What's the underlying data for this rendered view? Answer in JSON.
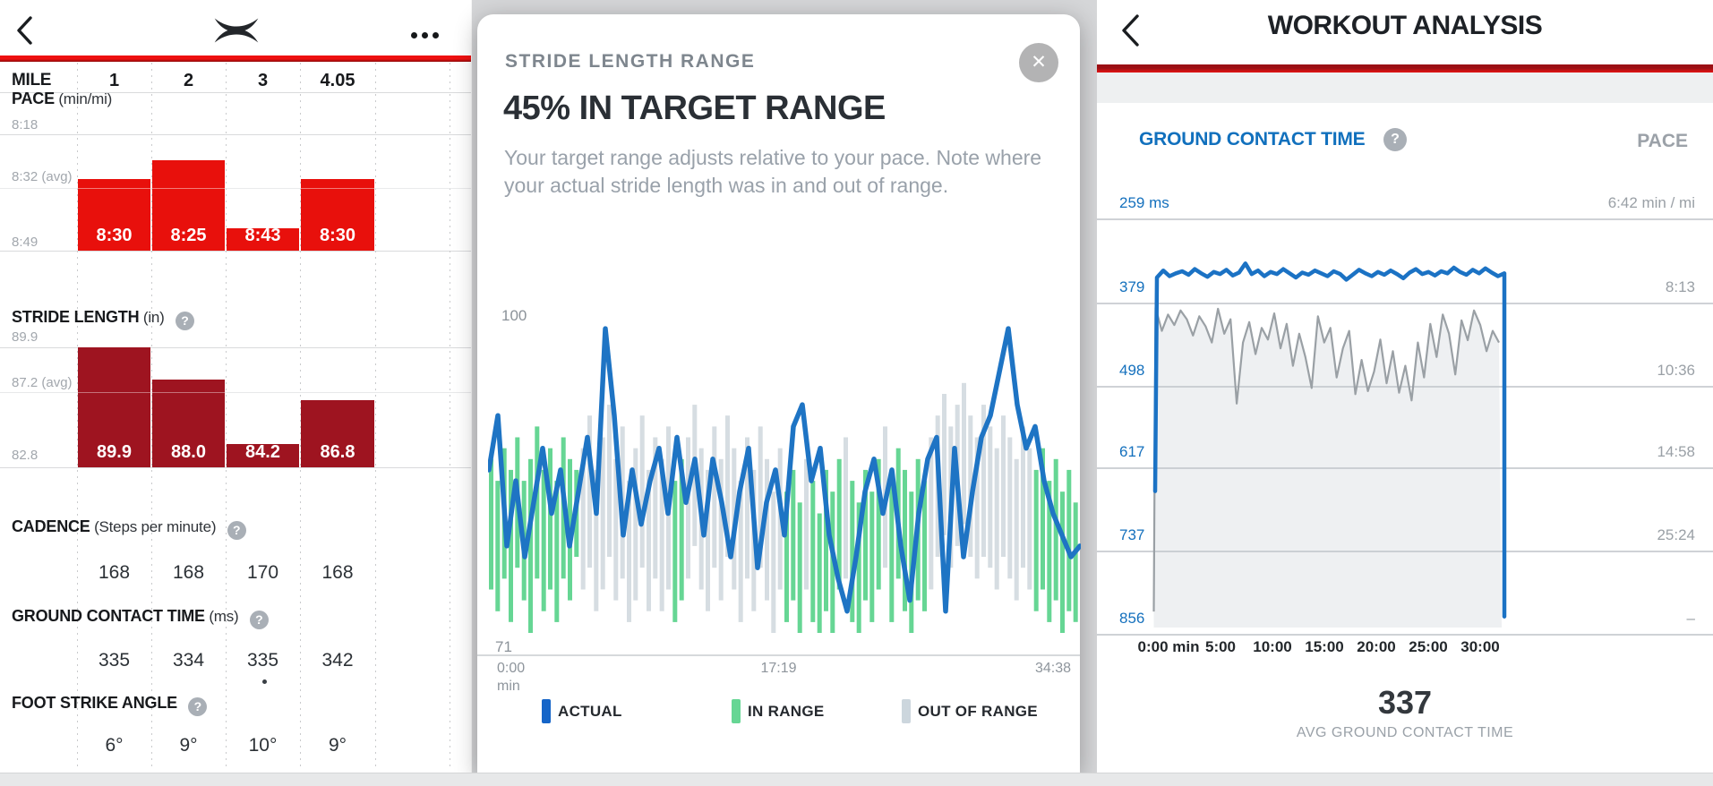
{
  "colors": {
    "accent_red": "#e8100c",
    "dark_red": "#9e1420",
    "blue": "#1b72c4",
    "green": "#66d694",
    "out_gray": "#d6dde2",
    "text_dark": "#24282d",
    "text_gray": "#9aa0a6"
  },
  "left": {
    "mile_label": "MILE",
    "miles": [
      "1",
      "2",
      "3",
      "4.05"
    ],
    "pace": {
      "title": "PACE",
      "unit": "(min/mi)",
      "axis_top": "8:18",
      "axis_avg": "8:32 (avg)",
      "axis_bottom": "8:49",
      "labels": [
        "8:30",
        "8:25",
        "8:43",
        "8:30"
      ]
    },
    "stride": {
      "title": "STRIDE LENGTH",
      "unit": "(in)",
      "axis_top": "89.9",
      "axis_avg": "87.2 (avg)",
      "axis_bottom": "82.8",
      "labels": [
        "89.9",
        "88.0",
        "84.2",
        "86.8"
      ]
    },
    "cadence": {
      "title": "CADENCE",
      "unit": "(Steps per minute)",
      "values": [
        "168",
        "168",
        "170",
        "168"
      ]
    },
    "gct": {
      "title": "GROUND CONTACT TIME",
      "unit": "(ms)",
      "values": [
        "335",
        "334",
        "335",
        "342"
      ]
    },
    "foot": {
      "title": "FOOT STRIKE ANGLE",
      "unit": "",
      "values": [
        "6°",
        "9°",
        "10°",
        "9°"
      ]
    }
  },
  "modal": {
    "title": "STRIDE LENGTH RANGE",
    "heading": "45% IN TARGET RANGE",
    "body": "Your target range adjusts relative to your pace. Note where your actual stride length was in and out of range.",
    "close_glyph": "✕",
    "y_top": "100",
    "y_bottom": "71",
    "x_left_line1": "0:00",
    "x_left_line2": "min",
    "x_mid": "17:19",
    "x_right": "34:38",
    "legend": {
      "actual": "ACTUAL",
      "in_range": "IN RANGE",
      "out_of_range": "OUT OF RANGE"
    }
  },
  "right": {
    "title": "WORKOUT ANALYSIS",
    "gct_label": "GROUND CONTACT TIME",
    "pace_label": "PACE",
    "y_left": [
      "259 ms",
      "379",
      "498",
      "617",
      "737",
      "856"
    ],
    "y_right": [
      "6:42 min / mi",
      "8:13",
      "10:36",
      "14:58",
      "25:24",
      "–"
    ],
    "x_ticks": [
      "0:00 min",
      "5:00",
      "10:00",
      "15:00",
      "20:00",
      "25:00",
      "30:00"
    ],
    "avg_value": "337",
    "avg_label": "AVG GROUND CONTACT TIME"
  },
  "chart_data": [
    {
      "type": "bar",
      "title": "PACE (min/mi)",
      "categories": [
        "1",
        "2",
        "3",
        "4.05"
      ],
      "values": [
        "8:30",
        "8:25",
        "8:43",
        "8:30"
      ],
      "values_seconds": [
        510,
        505,
        523,
        510
      ],
      "yaxis": {
        "top_label": "8:18",
        "avg_label": "8:32 (avg)",
        "bottom_label": "8:49",
        "top_seconds": 498,
        "avg_seconds": 512,
        "bottom_seconds": 529
      }
    },
    {
      "type": "bar",
      "title": "STRIDE LENGTH (in)",
      "categories": [
        "1",
        "2",
        "3",
        "4.05"
      ],
      "values": [
        89.9,
        88.0,
        84.2,
        86.8
      ],
      "yaxis": {
        "top": 89.9,
        "avg": 87.2,
        "bottom": 82.8
      }
    },
    {
      "type": "table",
      "title": "CADENCE (Steps per minute)",
      "categories": [
        "1",
        "2",
        "3",
        "4.05"
      ],
      "values": [
        168,
        168,
        170,
        168
      ]
    },
    {
      "type": "table",
      "title": "GROUND CONTACT TIME (ms)",
      "categories": [
        "1",
        "2",
        "3",
        "4.05"
      ],
      "values": [
        335,
        334,
        335,
        342
      ]
    },
    {
      "type": "table",
      "title": "FOOT STRIKE ANGLE (degrees)",
      "categories": [
        "1",
        "2",
        "3",
        "4.05"
      ],
      "values": [
        6,
        9,
        10,
        9
      ]
    },
    {
      "type": "line+bar",
      "title": "STRIDE LENGTH RANGE",
      "pct_in_target": 45,
      "ylim": [
        71,
        100
      ],
      "x_ticks": [
        "0:00 min",
        "17:19",
        "34:38"
      ],
      "legend": [
        "ACTUAL",
        "IN RANGE",
        "OUT OF RANGE"
      ],
      "actual_line": [
        86,
        91,
        79,
        85,
        78,
        83,
        88,
        82,
        86,
        79,
        84,
        89,
        82,
        99,
        91,
        80,
        86,
        81,
        85,
        88,
        82,
        89,
        83,
        87,
        80,
        87,
        83,
        78,
        84,
        88,
        77,
        83,
        86,
        80,
        90,
        92,
        85,
        88,
        80,
        76,
        73,
        78,
        84,
        87,
        82,
        86,
        79,
        74,
        82,
        87,
        89,
        73,
        88,
        78,
        84,
        89,
        91,
        95,
        99,
        92,
        88,
        90,
        85,
        82,
        80,
        78,
        79
      ],
      "range_bars": [
        [
          87,
          75,
          1
        ],
        [
          85,
          73,
          1
        ],
        [
          88,
          76,
          1
        ],
        [
          86,
          72,
          1
        ],
        [
          89,
          77,
          1
        ],
        [
          85,
          74,
          1
        ],
        [
          87,
          71,
          1
        ],
        [
          90,
          76,
          1
        ],
        [
          86,
          73,
          1
        ],
        [
          88,
          75,
          1
        ],
        [
          85,
          72,
          1
        ],
        [
          89,
          76,
          1
        ],
        [
          87,
          74,
          1
        ],
        [
          86,
          78,
          1
        ],
        [
          88,
          75,
          0
        ],
        [
          91,
          77,
          0
        ],
        [
          86,
          73,
          0
        ],
        [
          89,
          75,
          0
        ],
        [
          92,
          78,
          0
        ],
        [
          87,
          74,
          0
        ],
        [
          90,
          76,
          0
        ],
        [
          85,
          72,
          0
        ],
        [
          88,
          74,
          0
        ],
        [
          91,
          77,
          0
        ],
        [
          86,
          73,
          0
        ],
        [
          89,
          76,
          0
        ],
        [
          87,
          73,
          0
        ],
        [
          90,
          75,
          0
        ],
        [
          85,
          72,
          1
        ],
        [
          87,
          74,
          1
        ],
        [
          89,
          76,
          0
        ],
        [
          92,
          79,
          0
        ],
        [
          88,
          75,
          0
        ],
        [
          86,
          73,
          0
        ],
        [
          90,
          77,
          0
        ],
        [
          87,
          74,
          0
        ],
        [
          91,
          78,
          0
        ],
        [
          88,
          75,
          0
        ],
        [
          85,
          72,
          0
        ],
        [
          89,
          76,
          0
        ],
        [
          86,
          73,
          0
        ],
        [
          90,
          77,
          0
        ],
        [
          87,
          74,
          0
        ],
        [
          84,
          71,
          0
        ],
        [
          88,
          75,
          0
        ],
        [
          84,
          72,
          1
        ],
        [
          86,
          74,
          1
        ],
        [
          83,
          71,
          1
        ],
        [
          87,
          75,
          0
        ],
        [
          85,
          72,
          1
        ],
        [
          82,
          71,
          1
        ],
        [
          86,
          73,
          1
        ],
        [
          84,
          71,
          1
        ],
        [
          87,
          75,
          1
        ],
        [
          89,
          76,
          0
        ],
        [
          85,
          72,
          1
        ],
        [
          83,
          71,
          1
        ],
        [
          86,
          74,
          1
        ],
        [
          84,
          72,
          1
        ],
        [
          87,
          75,
          1
        ],
        [
          90,
          77,
          0
        ],
        [
          85,
          72,
          1
        ],
        [
          88,
          76,
          1
        ],
        [
          86,
          73,
          1
        ],
        [
          84,
          71,
          1
        ],
        [
          87,
          74,
          1
        ],
        [
          85,
          73,
          1
        ],
        [
          89,
          75,
          0
        ],
        [
          91,
          78,
          0
        ],
        [
          93,
          80,
          0
        ],
        [
          90,
          77,
          0
        ],
        [
          92,
          79,
          0
        ],
        [
          94,
          81,
          0
        ],
        [
          91,
          78,
          0
        ],
        [
          89,
          76,
          0
        ],
        [
          92,
          78,
          0
        ],
        [
          90,
          77,
          0
        ],
        [
          88,
          75,
          0
        ],
        [
          91,
          78,
          0
        ],
        [
          89,
          76,
          0
        ],
        [
          87,
          74,
          0
        ],
        [
          90,
          77,
          0
        ],
        [
          88,
          75,
          0
        ],
        [
          86,
          73,
          1
        ],
        [
          88,
          75,
          1
        ],
        [
          85,
          72,
          1
        ],
        [
          87,
          74,
          1
        ],
        [
          84,
          71,
          1
        ],
        [
          86,
          73,
          1
        ],
        [
          83,
          72,
          1
        ]
      ]
    },
    {
      "type": "line",
      "title": "GROUND CONTACT TIME vs PACE",
      "avg_ground_contact_time": 337,
      "gct_axis_ms": [
        259,
        379,
        498,
        617,
        737,
        856
      ],
      "pace_axis_labels": [
        "6:42",
        "8:13",
        "10:36",
        "14:58",
        "25:24",
        "–"
      ],
      "x_ticks_min": [
        0,
        5,
        10,
        15,
        20,
        25,
        30
      ],
      "gct_ms": [
        342,
        332,
        340,
        336,
        333,
        338,
        330,
        336,
        341,
        334,
        337,
        331,
        339,
        335,
        322,
        337,
        332,
        340,
        334,
        337,
        330,
        336,
        342,
        335,
        338,
        332,
        336,
        340,
        333,
        337,
        345,
        338,
        331,
        336,
        340,
        334,
        338,
        332,
        337,
        343,
        335,
        330,
        337,
        334,
        339,
        333,
        336,
        328,
        334,
        338,
        331,
        336,
        329,
        335,
        340,
        336
      ],
      "pace_seconds": [
        500,
        540,
        512,
        530,
        505,
        520,
        548,
        515,
        532,
        560,
        502,
        545,
        520,
        690,
        560,
        525,
        580,
        535,
        555,
        510,
        570,
        528,
        600,
        545,
        585,
        640,
        515,
        560,
        535,
        620,
        570,
        540,
        660,
        590,
        650,
        610,
        555,
        630,
        575,
        655,
        600,
        680,
        560,
        620,
        528,
        585,
        512,
        545,
        615,
        522,
        556,
        505,
        530,
        575,
        540,
        560
      ]
    }
  ]
}
